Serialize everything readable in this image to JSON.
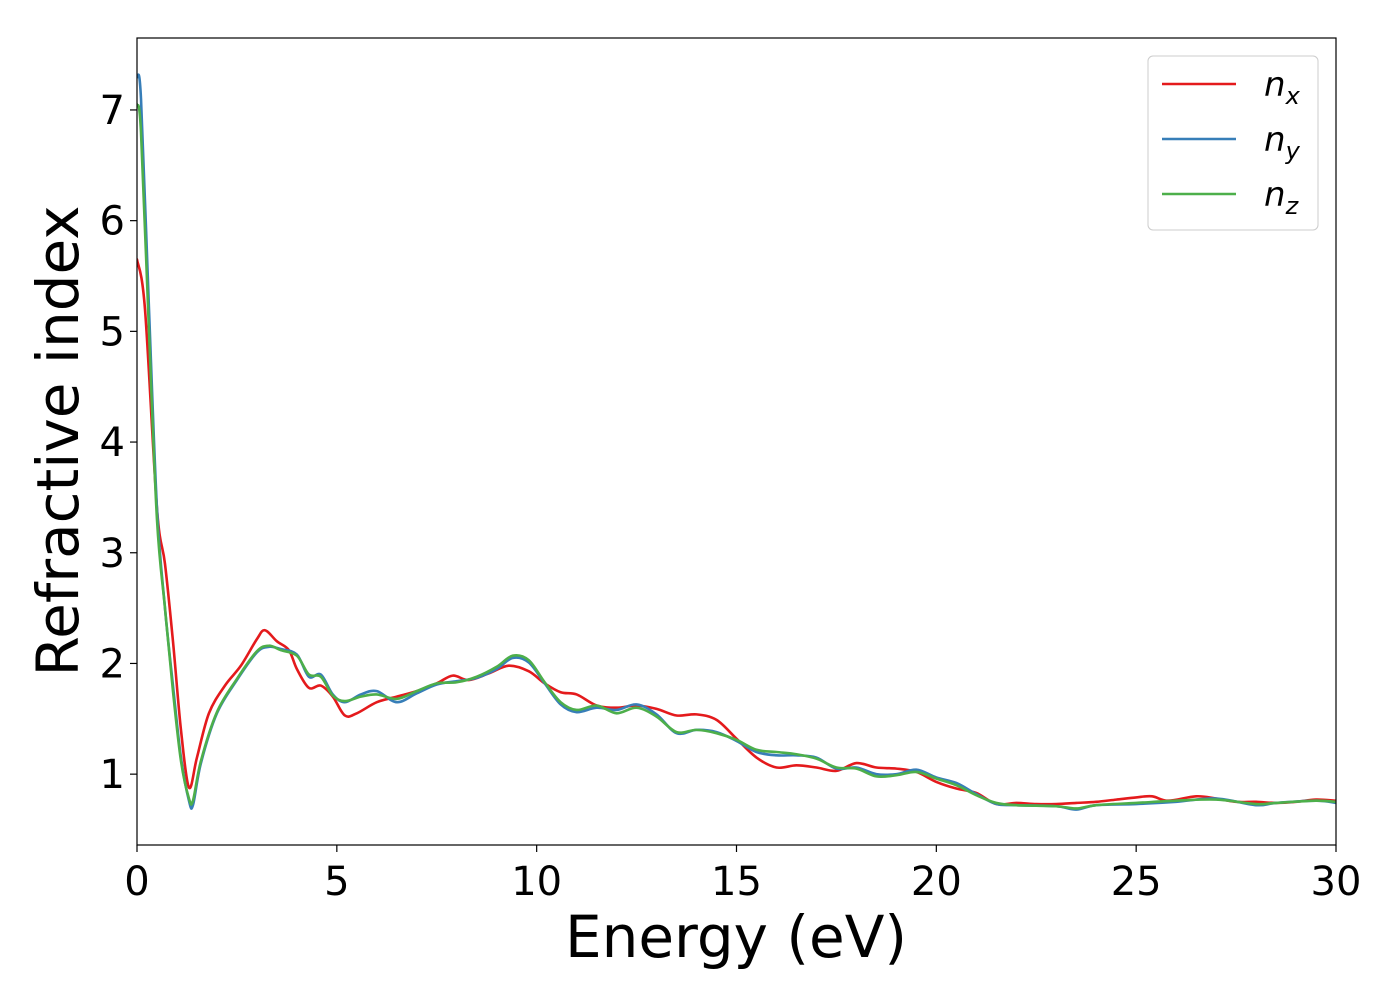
{
  "chart_data": {
    "type": "line",
    "xlabel": "Energy (eV)",
    "ylabel": "Refractive index",
    "xlim": [
      0,
      30
    ],
    "ylim": [
      0.36,
      7.65
    ],
    "xticks": [
      0,
      5,
      10,
      15,
      20,
      25,
      30
    ],
    "yticks": [
      1,
      2,
      3,
      4,
      5,
      6,
      7
    ],
    "grid": false,
    "legend_position": "top-right",
    "series": [
      {
        "name": "n_x",
        "label_base": "n",
        "label_sub": "x",
        "color": "#e41a1c",
        "points": [
          [
            0,
            5.65
          ],
          [
            0.2,
            5.2
          ],
          [
            0.5,
            3.4
          ],
          [
            0.7,
            2.9
          ],
          [
            0.9,
            2.2
          ],
          [
            1.1,
            1.4
          ],
          [
            1.3,
            0.88
          ],
          [
            1.5,
            1.15
          ],
          [
            1.8,
            1.55
          ],
          [
            2.2,
            1.8
          ],
          [
            2.6,
            1.98
          ],
          [
            3.0,
            2.22
          ],
          [
            3.2,
            2.3
          ],
          [
            3.5,
            2.2
          ],
          [
            3.8,
            2.12
          ],
          [
            4.0,
            1.95
          ],
          [
            4.3,
            1.78
          ],
          [
            4.6,
            1.8
          ],
          [
            4.9,
            1.7
          ],
          [
            5.2,
            1.53
          ],
          [
            5.5,
            1.55
          ],
          [
            6.0,
            1.65
          ],
          [
            6.5,
            1.7
          ],
          [
            7.0,
            1.75
          ],
          [
            7.5,
            1.82
          ],
          [
            7.9,
            1.89
          ],
          [
            8.3,
            1.85
          ],
          [
            8.8,
            1.91
          ],
          [
            9.3,
            1.98
          ],
          [
            9.8,
            1.93
          ],
          [
            10.2,
            1.82
          ],
          [
            10.6,
            1.74
          ],
          [
            11.0,
            1.72
          ],
          [
            11.5,
            1.62
          ],
          [
            12.0,
            1.6
          ],
          [
            12.5,
            1.62
          ],
          [
            13.0,
            1.59
          ],
          [
            13.5,
            1.53
          ],
          [
            14.0,
            1.54
          ],
          [
            14.5,
            1.49
          ],
          [
            15.0,
            1.32
          ],
          [
            15.5,
            1.15
          ],
          [
            16.0,
            1.06
          ],
          [
            16.5,
            1.08
          ],
          [
            17.0,
            1.06
          ],
          [
            17.5,
            1.03
          ],
          [
            18.0,
            1.1
          ],
          [
            18.5,
            1.06
          ],
          [
            19.0,
            1.05
          ],
          [
            19.5,
            1.02
          ],
          [
            20.0,
            0.93
          ],
          [
            20.5,
            0.87
          ],
          [
            21.0,
            0.83
          ],
          [
            21.5,
            0.73
          ],
          [
            22.0,
            0.74
          ],
          [
            22.5,
            0.73
          ],
          [
            23.0,
            0.73
          ],
          [
            23.5,
            0.74
          ],
          [
            24.0,
            0.75
          ],
          [
            24.5,
            0.77
          ],
          [
            25.0,
            0.79
          ],
          [
            25.4,
            0.8
          ],
          [
            25.8,
            0.76
          ],
          [
            26.5,
            0.8
          ],
          [
            27.0,
            0.78
          ],
          [
            27.5,
            0.75
          ],
          [
            28.0,
            0.75
          ],
          [
            28.5,
            0.74
          ],
          [
            29.0,
            0.75
          ],
          [
            29.5,
            0.77
          ],
          [
            30.0,
            0.76
          ]
        ]
      },
      {
        "name": "n_y",
        "label_base": "n",
        "label_sub": "y",
        "color": "#377eb8",
        "points": [
          [
            0,
            7.3
          ],
          [
            0.1,
            7.1
          ],
          [
            0.3,
            5.2
          ],
          [
            0.5,
            3.4
          ],
          [
            0.7,
            2.5
          ],
          [
            0.9,
            1.8
          ],
          [
            1.1,
            1.15
          ],
          [
            1.3,
            0.76
          ],
          [
            1.4,
            0.72
          ],
          [
            1.6,
            1.1
          ],
          [
            2.0,
            1.55
          ],
          [
            2.5,
            1.85
          ],
          [
            3.0,
            2.1
          ],
          [
            3.3,
            2.15
          ],
          [
            3.6,
            2.13
          ],
          [
            4.0,
            2.08
          ],
          [
            4.3,
            1.88
          ],
          [
            4.6,
            1.9
          ],
          [
            4.9,
            1.72
          ],
          [
            5.2,
            1.65
          ],
          [
            5.6,
            1.72
          ],
          [
            6.0,
            1.75
          ],
          [
            6.5,
            1.65
          ],
          [
            7.0,
            1.73
          ],
          [
            7.5,
            1.81
          ],
          [
            8.0,
            1.84
          ],
          [
            8.5,
            1.87
          ],
          [
            9.0,
            1.95
          ],
          [
            9.4,
            2.05
          ],
          [
            9.8,
            2.01
          ],
          [
            10.2,
            1.82
          ],
          [
            10.6,
            1.63
          ],
          [
            11.0,
            1.56
          ],
          [
            11.5,
            1.6
          ],
          [
            12.0,
            1.58
          ],
          [
            12.5,
            1.63
          ],
          [
            13.0,
            1.54
          ],
          [
            13.5,
            1.37
          ],
          [
            14.0,
            1.4
          ],
          [
            14.5,
            1.38
          ],
          [
            15.0,
            1.3
          ],
          [
            15.5,
            1.2
          ],
          [
            16.0,
            1.17
          ],
          [
            16.5,
            1.17
          ],
          [
            17.0,
            1.15
          ],
          [
            17.5,
            1.05
          ],
          [
            18.0,
            1.06
          ],
          [
            18.5,
            1.0
          ],
          [
            19.0,
            1.0
          ],
          [
            19.5,
            1.04
          ],
          [
            20.0,
            0.97
          ],
          [
            20.5,
            0.92
          ],
          [
            21.0,
            0.82
          ],
          [
            21.5,
            0.73
          ],
          [
            22.0,
            0.72
          ],
          [
            23.0,
            0.71
          ],
          [
            23.5,
            0.68
          ],
          [
            24.0,
            0.72
          ],
          [
            25.0,
            0.73
          ],
          [
            26.0,
            0.75
          ],
          [
            27.0,
            0.78
          ],
          [
            28.0,
            0.72
          ],
          [
            28.5,
            0.74
          ],
          [
            29.5,
            0.76
          ],
          [
            30.0,
            0.74
          ]
        ]
      },
      {
        "name": "n_z",
        "label_base": "n",
        "label_sub": "z",
        "color": "#4daf4a",
        "points": [
          [
            0,
            7.05
          ],
          [
            0.1,
            6.8
          ],
          [
            0.3,
            5.0
          ],
          [
            0.5,
            3.3
          ],
          [
            0.7,
            2.5
          ],
          [
            0.9,
            1.75
          ],
          [
            1.1,
            1.12
          ],
          [
            1.3,
            0.78
          ],
          [
            1.4,
            0.76
          ],
          [
            1.6,
            1.12
          ],
          [
            2.0,
            1.56
          ],
          [
            2.5,
            1.86
          ],
          [
            3.0,
            2.11
          ],
          [
            3.3,
            2.16
          ],
          [
            3.6,
            2.12
          ],
          [
            4.0,
            2.07
          ],
          [
            4.3,
            1.9
          ],
          [
            4.6,
            1.88
          ],
          [
            4.9,
            1.71
          ],
          [
            5.2,
            1.66
          ],
          [
            5.6,
            1.7
          ],
          [
            6.0,
            1.72
          ],
          [
            6.5,
            1.68
          ],
          [
            7.0,
            1.75
          ],
          [
            7.5,
            1.82
          ],
          [
            8.0,
            1.83
          ],
          [
            8.5,
            1.88
          ],
          [
            9.0,
            1.97
          ],
          [
            9.4,
            2.07
          ],
          [
            9.8,
            2.03
          ],
          [
            10.2,
            1.83
          ],
          [
            10.6,
            1.65
          ],
          [
            11.0,
            1.58
          ],
          [
            11.5,
            1.62
          ],
          [
            12.0,
            1.55
          ],
          [
            12.5,
            1.6
          ],
          [
            13.0,
            1.52
          ],
          [
            13.5,
            1.38
          ],
          [
            14.0,
            1.4
          ],
          [
            14.5,
            1.37
          ],
          [
            15.0,
            1.31
          ],
          [
            15.5,
            1.22
          ],
          [
            16.0,
            1.2
          ],
          [
            16.5,
            1.18
          ],
          [
            17.0,
            1.14
          ],
          [
            17.5,
            1.06
          ],
          [
            18.0,
            1.05
          ],
          [
            18.5,
            0.98
          ],
          [
            19.0,
            0.99
          ],
          [
            19.5,
            1.02
          ],
          [
            20.0,
            0.96
          ],
          [
            20.5,
            0.9
          ],
          [
            21.0,
            0.81
          ],
          [
            21.5,
            0.74
          ],
          [
            22.0,
            0.72
          ],
          [
            23.0,
            0.71
          ],
          [
            23.5,
            0.69
          ],
          [
            24.0,
            0.72
          ],
          [
            25.0,
            0.74
          ],
          [
            26.0,
            0.76
          ],
          [
            27.0,
            0.77
          ],
          [
            28.0,
            0.73
          ],
          [
            28.5,
            0.74
          ],
          [
            29.5,
            0.76
          ],
          [
            30.0,
            0.75
          ]
        ]
      }
    ]
  }
}
